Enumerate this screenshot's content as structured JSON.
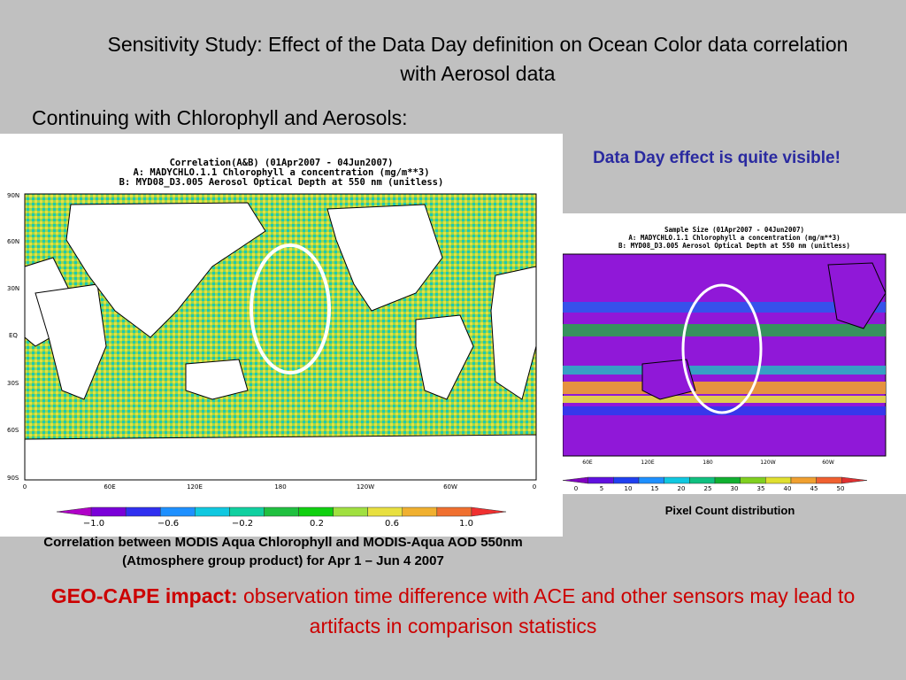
{
  "slide": {
    "title": "Sensitivity Study: Effect of the Data Day definition on Ocean Color data correlation with Aerosol data",
    "subtitle": "Continuing with Chlorophyll and Aerosols:",
    "callout": "Data Day effect is quite visible!",
    "caption_left": "Correlation between MODIS Aqua Chlorophyll and MODIS-Aqua AOD 550nm (Atmosphere group product) for Apr 1 – Jun 4 2007",
    "caption_right": "Pixel Count distribution",
    "impact_label": "GEO-CAPE impact:",
    "impact_text": " observation time difference with ACE and other sensors may lead to artifacts in comparison statistics"
  },
  "left_map": {
    "line1": "Correlation(A&B) (01Apr2007 - 04Jun2007)",
    "line2": "A: MADYCHLO.1.1 Chlorophyll a concentration (mg/m**3)",
    "line3": "B: MYD08_D3.005 Aerosol Optical Depth at 550 nm (unitless)",
    "lat_labels": [
      "90N",
      "60N",
      "30N",
      "EQ",
      "30S",
      "60S",
      "90S"
    ],
    "lon_labels": [
      "0",
      "60E",
      "120E",
      "180",
      "120W",
      "60W",
      "0"
    ],
    "colorbar_colors": [
      "#b000c8",
      "#7a00d8",
      "#3030f0",
      "#1e90ff",
      "#10c8e0",
      "#10d0a0",
      "#20c040",
      "#10d010",
      "#a0e040",
      "#e8e040",
      "#f0b030",
      "#f07030",
      "#f03030"
    ],
    "colorbar_labels": [
      "−1.0",
      "−0.6",
      "−0.2",
      "0.2",
      "0.6",
      "1.0"
    ]
  },
  "right_map": {
    "line1": "Sample Size (01Apr2007 - 04Jun2007)",
    "line2": "A: MADYCHLO.1.1 Chlorophyll a concentration (mg/m**3)",
    "line3": "B: MYD08_D3.005 Aerosol Optical Depth at 550 nm (unitless)",
    "lon_labels": [
      "60E",
      "120E",
      "180",
      "120W",
      "60W"
    ],
    "colorbar_colors": [
      "#8000c0",
      "#6010e0",
      "#2040f0",
      "#1e90ff",
      "#10c8e0",
      "#10c080",
      "#10b030",
      "#80d020",
      "#e0e030",
      "#f0a030",
      "#f06030",
      "#e03030"
    ],
    "colorbar_labels": [
      "0",
      "5",
      "10",
      "15",
      "20",
      "25",
      "30",
      "35",
      "40",
      "45",
      "50"
    ]
  }
}
